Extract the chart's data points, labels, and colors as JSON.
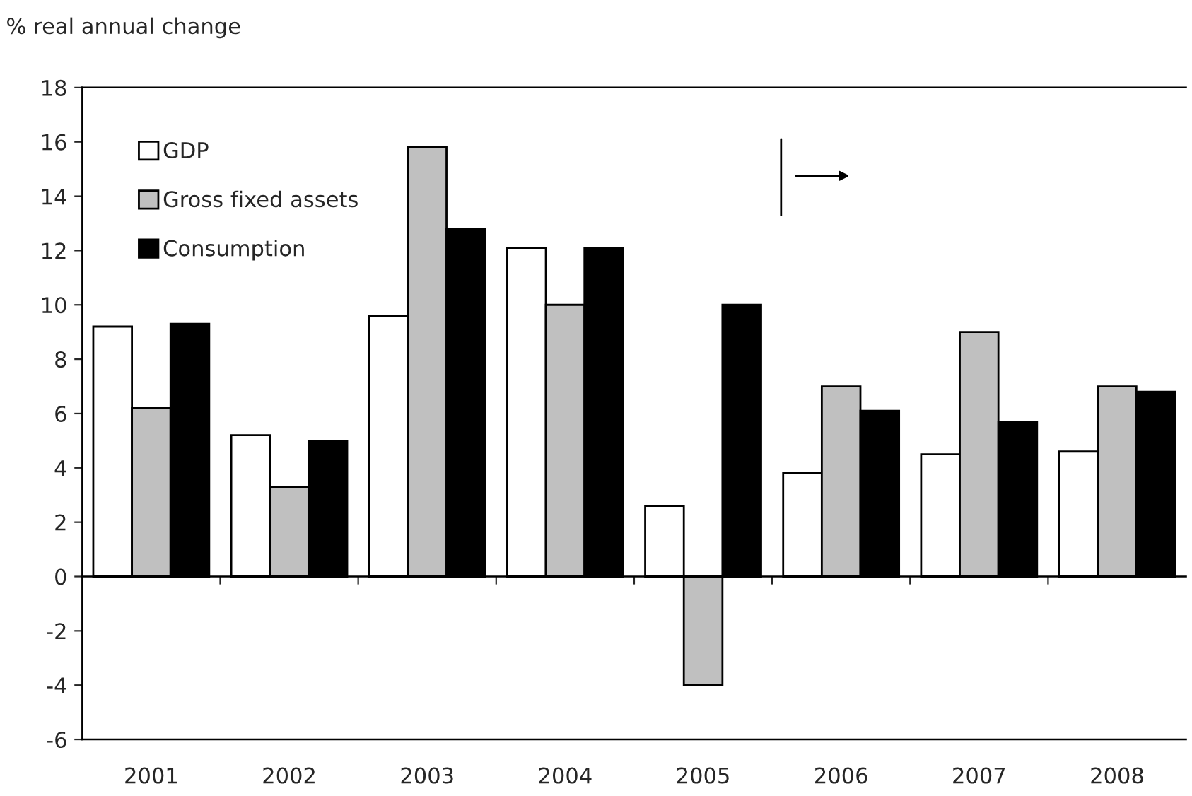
{
  "chart_data": {
    "type": "bar",
    "ylabel": "% real annual change",
    "categories": [
      "2001",
      "2002",
      "2003",
      "2004",
      "2005",
      "2006",
      "2007",
      "2008"
    ],
    "series": [
      {
        "name": "GDP",
        "color": "#ffffff",
        "values": [
          9.2,
          5.2,
          9.6,
          12.1,
          2.6,
          3.8,
          4.5,
          4.6
        ]
      },
      {
        "name": "Gross fixed assets",
        "color": "#c0c0c0",
        "values": [
          6.2,
          3.3,
          15.8,
          10.0,
          -4.0,
          7.0,
          9.0,
          7.0
        ]
      },
      {
        "name": "Consumption",
        "color": "#000000",
        "values": [
          9.3,
          5.0,
          12.8,
          12.1,
          10.0,
          6.1,
          5.7,
          6.8
        ]
      }
    ],
    "ylim": [
      -6,
      18
    ],
    "yticks": [
      -6,
      -4,
      -2,
      0,
      2,
      4,
      6,
      8,
      10,
      12,
      14,
      16,
      18
    ],
    "legend": "top left"
  }
}
